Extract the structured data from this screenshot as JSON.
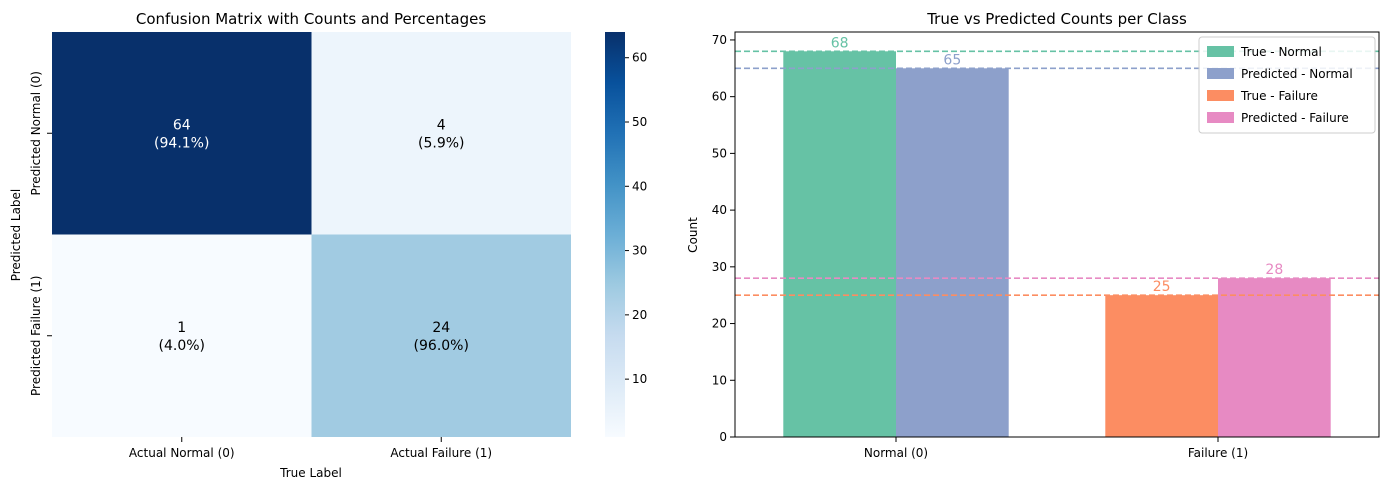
{
  "chart_data": [
    {
      "type": "heatmap",
      "title": "Confusion Matrix with Counts and Percentages",
      "xlabel": "True Label",
      "ylabel": "Predicted Label",
      "x_categories": [
        "Actual Normal (0)",
        "Actual Failure (1)"
      ],
      "y_categories": [
        "Predicted Normal (0)",
        "Predicted Failure (1)"
      ],
      "values": [
        [
          64,
          4
        ],
        [
          1,
          24
        ]
      ],
      "percent_labels": [
        [
          "(94.1%)",
          "(5.9%)"
        ],
        [
          "(4.0%)",
          "(96.0%)"
        ]
      ],
      "colormap": "Blues",
      "colorbar": {
        "min": 1,
        "max": 64,
        "ticks": [
          10,
          20,
          30,
          40,
          50,
          60
        ]
      }
    },
    {
      "type": "bar",
      "title": "True vs Predicted Counts per Class",
      "xlabel": "",
      "ylabel": "Count",
      "categories": [
        "Normal (0)",
        "Failure (1)"
      ],
      "ylim": [
        0,
        71.4
      ],
      "yticks": [
        0,
        10,
        20,
        30,
        40,
        50,
        60,
        70
      ],
      "series": [
        {
          "name": "True - Normal",
          "color": "#66c2a5",
          "category_index": 0,
          "offset": "left",
          "value": 68
        },
        {
          "name": "Predicted - Normal",
          "color": "#8da0cb",
          "category_index": 0,
          "offset": "right",
          "value": 65
        },
        {
          "name": "True - Failure",
          "color": "#fc8d62",
          "category_index": 1,
          "offset": "left",
          "value": 25
        },
        {
          "name": "Predicted - Failure",
          "color": "#e78ac3",
          "category_index": 1,
          "offset": "right",
          "value": 28
        }
      ],
      "reference_lines": "dashed horizontal line at each bar value",
      "legend": "top-right",
      "grid": false
    }
  ]
}
